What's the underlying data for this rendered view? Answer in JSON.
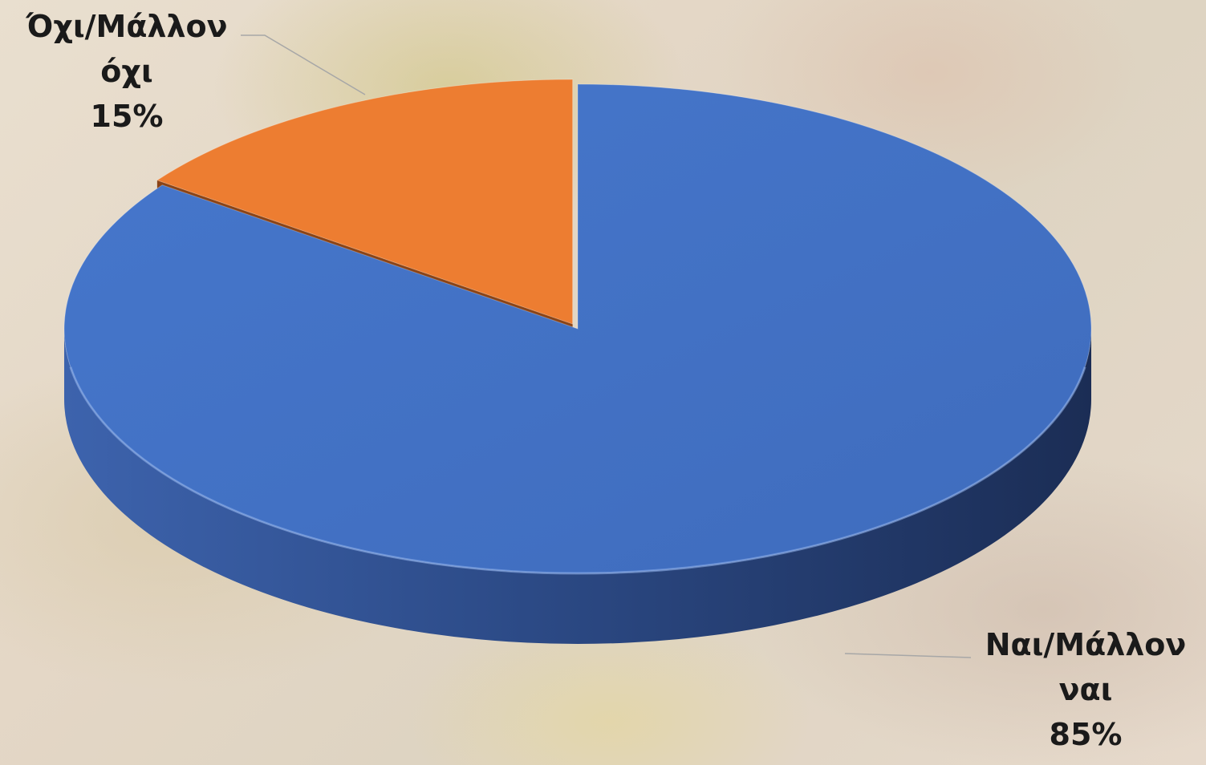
{
  "chart_data": {
    "type": "pie",
    "style": "3d",
    "categories": [
      "Ναι/Μάλλον ναι",
      "Όχι/Μάλλον όχι"
    ],
    "values": [
      85,
      15
    ],
    "unit": "%",
    "colors": [
      "#4472C4",
      "#ED7D31"
    ],
    "exploded": "Όχι/Μάλλον όχι",
    "labels": [
      {
        "line1": "Ναι/Μάλλον",
        "line2": "ναι",
        "percent": "85%"
      },
      {
        "line1": "Όχι/Μάλλον",
        "line2": "όχι",
        "percent": "15%"
      }
    ],
    "legend": "none"
  }
}
